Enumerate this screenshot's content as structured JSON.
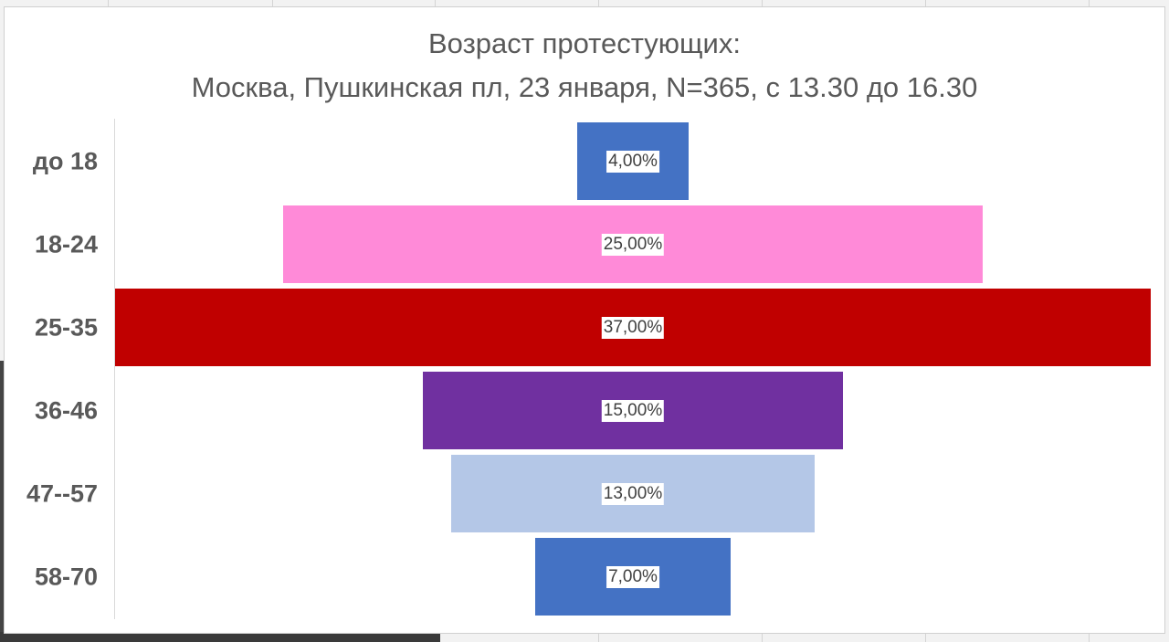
{
  "chart_data": {
    "type": "bar",
    "subtype": "funnel",
    "title_lines": [
      "Возраст протестующих:",
      "Москва, Пушкинская пл, 23 января, N=365, с 13.30 до 16.30"
    ],
    "categories": [
      "до 18",
      "18-24",
      "25-35",
      "36-46",
      "47--57",
      "58-70"
    ],
    "values": [
      4,
      25,
      37,
      15,
      13,
      7
    ],
    "data_labels": [
      "4,00%",
      "25,00%",
      "37,00%",
      "15,00%",
      "13,00%",
      "7,00%"
    ],
    "colors": [
      "#4472c4",
      "#ff8ad8",
      "#c00000",
      "#7030a0",
      "#b4c7e7",
      "#4472c4"
    ],
    "legend": "none",
    "grid": false
  }
}
